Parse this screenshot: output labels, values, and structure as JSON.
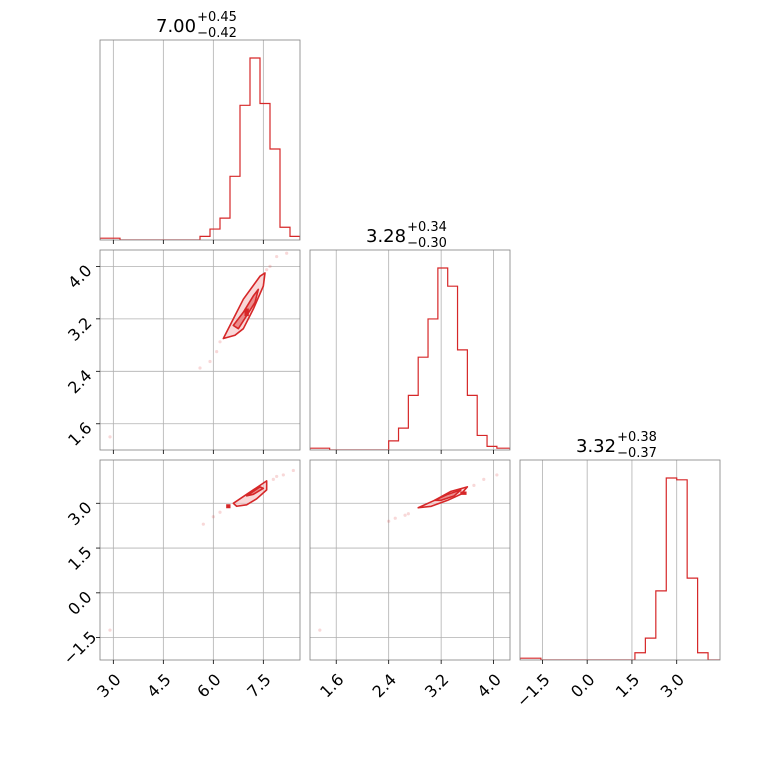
{
  "chart_data": {
    "type": "corner",
    "parameters": [
      {
        "range": [
          2.6,
          8.6
        ],
        "ticks": [
          3.0,
          4.5,
          6.0,
          7.5
        ],
        "tick_labels": [
          "3.0",
          "4.5",
          "6.0",
          "7.5"
        ]
      },
      {
        "range": [
          1.2,
          4.25
        ],
        "ticks": [
          1.6,
          2.4,
          3.2,
          4.0
        ],
        "tick_labels": [
          "1.6",
          "2.4",
          "3.2",
          "4.0"
        ]
      },
      {
        "range": [
          -2.25,
          4.45
        ],
        "ticks": [
          -1.5,
          0.0,
          1.5,
          3.0
        ],
        "tick_labels": [
          "−1.5",
          "0.0",
          "1.5",
          "3.0"
        ]
      }
    ],
    "titles": [
      {
        "value": "7.00",
        "plus": "+0.45",
        "minus": "−0.42"
      },
      {
        "value": "3.28",
        "plus": "+0.34",
        "minus": "−0.30"
      },
      {
        "value": "3.32",
        "plus": "+0.38",
        "minus": "−0.37"
      }
    ],
    "histograms": [
      {
        "param": 0,
        "edges": [
          2.6,
          2.9,
          3.2,
          3.5,
          3.8,
          4.1,
          4.4,
          4.7,
          5.0,
          5.3,
          5.6,
          5.9,
          6.2,
          6.5,
          6.8,
          7.1,
          7.4,
          7.7,
          8.0,
          8.3,
          8.6
        ],
        "counts": [
          0.01,
          0.01,
          0,
          0,
          0,
          0,
          0,
          0,
          0,
          0,
          0.02,
          0.06,
          0.12,
          0.35,
          0.74,
          1.0,
          0.75,
          0.5,
          0.07,
          0.02
        ]
      },
      {
        "param": 1,
        "edges": [
          1.2,
          1.35,
          1.5,
          1.65,
          1.8,
          1.95,
          2.1,
          2.25,
          2.4,
          2.55,
          2.7,
          2.85,
          3.0,
          3.15,
          3.3,
          3.45,
          3.6,
          3.75,
          3.9,
          4.05,
          4.25
        ],
        "counts": [
          0.01,
          0.01,
          0,
          0,
          0,
          0,
          0,
          0,
          0.05,
          0.12,
          0.3,
          0.51,
          0.72,
          1.0,
          0.9,
          0.55,
          0.3,
          0.08,
          0.02,
          0.01
        ]
      },
      {
        "param": 2,
        "edges": [
          -2.25,
          -1.9,
          -1.55,
          -1.2,
          -0.85,
          -0.5,
          -0.15,
          0.2,
          0.55,
          0.9,
          1.25,
          1.6,
          1.95,
          2.3,
          2.65,
          3.0,
          3.35,
          3.7,
          4.05,
          4.45
        ],
        "counts": [
          0.01,
          0.01,
          0,
          0,
          0,
          0,
          0,
          0,
          0,
          0,
          0,
          0.04,
          0.12,
          0.38,
          1.0,
          0.99,
          0.45,
          0.04,
          0.0
        ]
      }
    ],
    "contours": [
      {
        "x_param": 0,
        "y_param": 1,
        "outer": [
          [
            6.3,
            2.9
          ],
          [
            6.6,
            3.2
          ],
          [
            6.9,
            3.5
          ],
          [
            7.4,
            3.85
          ],
          [
            7.55,
            3.9
          ],
          [
            7.5,
            3.7
          ],
          [
            7.2,
            3.35
          ],
          [
            6.9,
            3.05
          ],
          [
            6.65,
            2.95
          ],
          [
            6.3,
            2.9
          ]
        ],
        "inner": [
          [
            6.6,
            3.1
          ],
          [
            6.9,
            3.3
          ],
          [
            7.2,
            3.55
          ],
          [
            7.35,
            3.65
          ],
          [
            7.25,
            3.45
          ],
          [
            7.0,
            3.25
          ],
          [
            6.75,
            3.05
          ],
          [
            6.6,
            3.1
          ]
        ],
        "core": [
          [
            6.95,
            3.25
          ],
          [
            7.05,
            3.25
          ],
          [
            7.05,
            3.35
          ],
          [
            6.95,
            3.35
          ]
        ],
        "scatter": [
          [
            5.6,
            2.45
          ],
          [
            5.9,
            2.55
          ],
          [
            6.1,
            2.7
          ],
          [
            7.7,
            4.0
          ],
          [
            7.9,
            4.15
          ],
          [
            8.2,
            4.2
          ],
          [
            2.9,
            1.4
          ],
          [
            6.2,
            2.85
          ],
          [
            7.6,
            3.95
          ]
        ]
      },
      {
        "x_param": 0,
        "y_param": 2,
        "outer": [
          [
            6.6,
            3.0
          ],
          [
            7.0,
            3.3
          ],
          [
            7.4,
            3.6
          ],
          [
            7.6,
            3.75
          ],
          [
            7.6,
            3.45
          ],
          [
            7.3,
            3.15
          ],
          [
            7.0,
            2.95
          ],
          [
            6.7,
            2.9
          ],
          [
            6.6,
            3.0
          ]
        ],
        "inner": [
          [
            7.0,
            3.25
          ],
          [
            7.4,
            3.55
          ],
          [
            7.5,
            3.5
          ],
          [
            7.2,
            3.3
          ],
          [
            7.0,
            3.25
          ]
        ],
        "core": [
          [
            6.4,
            2.85
          ],
          [
            6.5,
            2.85
          ],
          [
            6.5,
            2.95
          ],
          [
            6.4,
            2.95
          ]
        ],
        "scatter": [
          [
            5.7,
            2.3
          ],
          [
            6.0,
            2.55
          ],
          [
            6.2,
            2.7
          ],
          [
            7.8,
            3.8
          ],
          [
            8.1,
            3.95
          ],
          [
            8.4,
            4.1
          ],
          [
            2.9,
            -1.25
          ],
          [
            7.9,
            3.9
          ]
        ]
      },
      {
        "x_param": 1,
        "y_param": 2,
        "outer": [
          [
            2.85,
            2.85
          ],
          [
            3.1,
            3.1
          ],
          [
            3.35,
            3.4
          ],
          [
            3.6,
            3.55
          ],
          [
            3.5,
            3.3
          ],
          [
            3.3,
            3.1
          ],
          [
            3.05,
            2.9
          ],
          [
            2.85,
            2.85
          ]
        ],
        "inner": [
          [
            3.1,
            3.1
          ],
          [
            3.3,
            3.3
          ],
          [
            3.5,
            3.45
          ],
          [
            3.4,
            3.25
          ],
          [
            3.2,
            3.1
          ],
          [
            3.1,
            3.1
          ]
        ],
        "core": [
          [
            3.5,
            3.3
          ],
          [
            3.58,
            3.3
          ],
          [
            3.58,
            3.38
          ],
          [
            3.5,
            3.38
          ]
        ],
        "scatter": [
          [
            2.4,
            2.4
          ],
          [
            2.5,
            2.5
          ],
          [
            2.65,
            2.6
          ],
          [
            3.7,
            3.6
          ],
          [
            3.85,
            3.8
          ],
          [
            4.05,
            3.95
          ],
          [
            1.35,
            -1.25
          ],
          [
            2.7,
            2.65
          ]
        ]
      }
    ]
  }
}
